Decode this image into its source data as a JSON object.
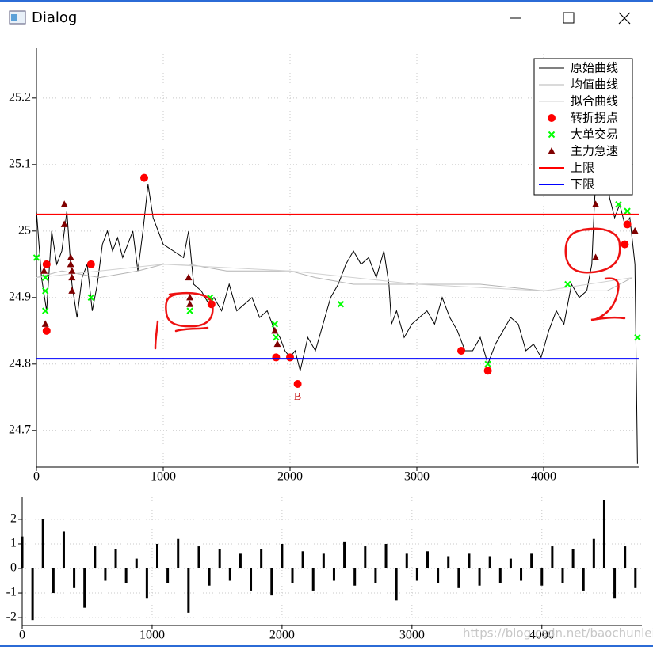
{
  "window": {
    "title": "Dialog"
  },
  "watermark": "https://blog.csdn.net/baochunlei1",
  "chart_data": [
    {
      "type": "line",
      "xlim": [
        0,
        4750
      ],
      "ylim": [
        24.645,
        25.276
      ],
      "xticks": [
        0,
        1000,
        2000,
        3000,
        4000
      ],
      "yticks": [
        24.7,
        24.8,
        24.9,
        25,
        25.1,
        25.2
      ],
      "grid": true,
      "legend": "upper right",
      "series": [
        {
          "name": "原始曲线",
          "kind": "line",
          "color": "#000000",
          "x": [
            0,
            40,
            80,
            120,
            160,
            200,
            240,
            280,
            320,
            360,
            400,
            440,
            480,
            520,
            560,
            600,
            640,
            680,
            720,
            760,
            800,
            840,
            880,
            920,
            960,
            1000,
            1080,
            1160,
            1200,
            1240,
            1300,
            1360,
            1400,
            1460,
            1520,
            1580,
            1640,
            1700,
            1760,
            1820,
            1880,
            1920,
            1960,
            2000,
            2040,
            2080,
            2140,
            2200,
            2260,
            2320,
            2380,
            2440,
            2500,
            2560,
            2620,
            2680,
            2740,
            2780,
            2800,
            2840,
            2900,
            2960,
            3020,
            3080,
            3140,
            3200,
            3260,
            3320,
            3380,
            3440,
            3500,
            3560,
            3620,
            3680,
            3740,
            3800,
            3860,
            3920,
            3980,
            4040,
            4100,
            4160,
            4220,
            4280,
            4340,
            4380,
            4400,
            4440,
            4480,
            4520,
            4560,
            4600,
            4640,
            4680,
            4720,
            4740
          ],
          "values": [
            25.03,
            24.93,
            24.88,
            25.0,
            24.95,
            24.97,
            25.03,
            24.92,
            24.87,
            24.93,
            24.95,
            24.88,
            24.92,
            24.98,
            25.0,
            24.97,
            24.99,
            24.96,
            24.98,
            25.0,
            24.94,
            25.0,
            25.07,
            25.02,
            25.0,
            24.98,
            24.97,
            24.96,
            25.0,
            24.92,
            24.91,
            24.89,
            24.9,
            24.88,
            24.92,
            24.88,
            24.89,
            24.9,
            24.87,
            24.88,
            24.85,
            24.84,
            24.82,
            24.81,
            24.82,
            24.79,
            24.84,
            24.82,
            24.86,
            24.9,
            24.92,
            24.95,
            24.97,
            24.95,
            24.96,
            24.93,
            24.97,
            24.92,
            24.86,
            24.88,
            24.84,
            24.86,
            24.87,
            24.88,
            24.86,
            24.9,
            24.87,
            24.85,
            24.82,
            24.82,
            24.84,
            24.8,
            24.83,
            24.85,
            24.87,
            24.86,
            24.82,
            24.83,
            24.81,
            24.85,
            24.88,
            24.86,
            24.92,
            24.9,
            24.91,
            24.95,
            25.04,
            25.16,
            25.11,
            25.05,
            25.02,
            25.04,
            25.01,
            25.02,
            24.95,
            24.65
          ]
        },
        {
          "name": "均值曲线",
          "kind": "line",
          "color": "#b4b4b4",
          "x": [
            0,
            200,
            500,
            800,
            1000,
            1200,
            1500,
            1800,
            2000,
            2200,
            2500,
            3000,
            3500,
            4000,
            4300,
            4500,
            4700
          ],
          "values": [
            24.93,
            24.94,
            24.93,
            24.94,
            24.95,
            24.95,
            24.94,
            24.94,
            24.94,
            24.93,
            24.92,
            24.92,
            24.92,
            24.91,
            24.91,
            24.91,
            24.93
          ]
        },
        {
          "name": "拟合曲线",
          "kind": "line",
          "color": "#d0d0d0",
          "x": [
            0,
            1000,
            2000,
            3000,
            4000,
            4700
          ],
          "values": [
            24.93,
            24.95,
            24.94,
            24.92,
            24.91,
            24.93
          ]
        },
        {
          "name": "转折拐点",
          "kind": "scatter",
          "marker": "circle",
          "color": "#ff0000",
          "x": [
            80,
            80,
            430,
            850,
            1380,
            1890,
            2000,
            2060,
            3350,
            3560,
            4440,
            4600,
            4640,
            4660
          ],
          "values": [
            24.95,
            24.85,
            24.95,
            25.08,
            24.89,
            24.81,
            24.81,
            24.77,
            24.82,
            24.79,
            25.15,
            25.06,
            24.98,
            25.01
          ]
        },
        {
          "name": "大单交易",
          "kind": "scatter",
          "marker": "x",
          "color": "#00ff00",
          "x": [
            0,
            70,
            70,
            70,
            430,
            1210,
            1370,
            1880,
            1890,
            2400,
            3560,
            4190,
            4590,
            4660,
            4740
          ],
          "values": [
            24.96,
            24.93,
            24.91,
            24.88,
            24.9,
            24.88,
            24.9,
            24.86,
            24.84,
            24.89,
            24.8,
            24.92,
            25.04,
            25.03,
            24.84
          ]
        },
        {
          "name": "主力急速",
          "kind": "scatter",
          "marker": "triangle",
          "color": "#800000",
          "x": [
            60,
            70,
            220,
            220,
            270,
            270,
            280,
            280,
            280,
            1200,
            1210,
            1210,
            1880,
            1900,
            4410,
            4410,
            4720
          ],
          "values": [
            24.94,
            24.86,
            25.04,
            25.01,
            24.96,
            24.95,
            24.94,
            24.93,
            24.91,
            24.93,
            24.9,
            24.89,
            24.85,
            24.83,
            25.04,
            24.96,
            25.0
          ]
        },
        {
          "name": "上限",
          "kind": "hline",
          "color": "#ff0000",
          "value": 25.025
        },
        {
          "name": "下限",
          "kind": "hline",
          "color": "#0000ff",
          "value": 24.808
        }
      ],
      "annotations": [
        {
          "text": "B",
          "x": 2060,
          "y": 24.75
        }
      ]
    },
    {
      "type": "bar",
      "xlim": [
        0,
        4770
      ],
      "ylim": [
        -2.32,
        2.9
      ],
      "xticks": [
        0,
        1000,
        2000,
        3000,
        4000
      ],
      "yticks": [
        -2,
        -1,
        0,
        1,
        2
      ],
      "grid": true,
      "color": "#000000",
      "x": [
        0,
        80,
        160,
        240,
        320,
        400,
        480,
        560,
        640,
        720,
        800,
        880,
        960,
        1040,
        1120,
        1200,
        1280,
        1360,
        1440,
        1520,
        1600,
        1680,
        1760,
        1840,
        1920,
        2000,
        2080,
        2160,
        2240,
        2320,
        2400,
        2480,
        2560,
        2640,
        2720,
        2800,
        2880,
        2960,
        3040,
        3120,
        3200,
        3280,
        3360,
        3440,
        3520,
        3600,
        3680,
        3760,
        3840,
        3920,
        4000,
        4080,
        4160,
        4240,
        4320,
        4400,
        4480,
        4560,
        4640,
        4720
      ],
      "values": [
        1.3,
        -2.1,
        2.0,
        -1.0,
        1.5,
        -0.8,
        -1.6,
        0.9,
        -0.5,
        0.8,
        -0.6,
        0.4,
        -1.2,
        1.0,
        -0.6,
        1.2,
        -1.8,
        0.9,
        -0.7,
        0.8,
        -0.5,
        0.6,
        -0.9,
        0.8,
        -1.1,
        1.0,
        -0.6,
        0.7,
        -0.9,
        0.6,
        -0.5,
        1.1,
        -0.7,
        0.9,
        -0.6,
        1.0,
        -1.3,
        0.6,
        -0.5,
        0.7,
        -0.6,
        0.5,
        -0.8,
        0.6,
        -0.7,
        0.5,
        -0.6,
        0.4,
        -0.5,
        0.6,
        -0.7,
        0.9,
        -0.6,
        0.8,
        -0.9,
        1.2,
        2.8,
        -1.2,
        0.9,
        -0.8
      ]
    }
  ]
}
